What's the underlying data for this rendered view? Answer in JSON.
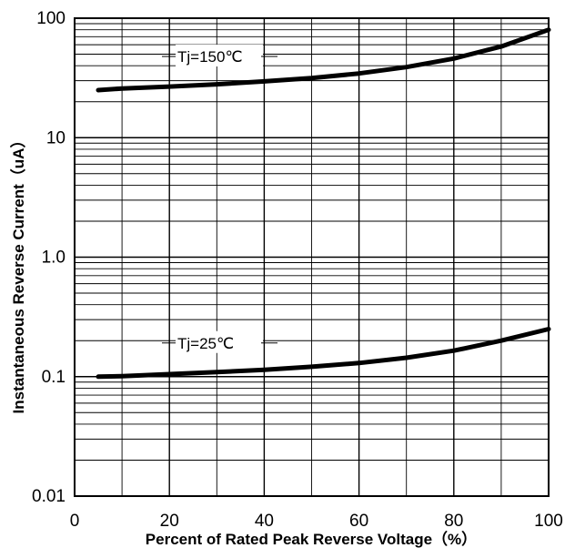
{
  "chart_data": {
    "type": "line",
    "title": "",
    "xlabel": "Percent of Rated Peak Reverse Voltage（%）",
    "ylabel": "Instantaneous Reverse Current（uA）",
    "xlim": [
      0,
      100
    ],
    "ylim": [
      0.01,
      100
    ],
    "yscale": "log",
    "grid": true,
    "x_ticks": [
      "0",
      "20",
      "40",
      "60",
      "80",
      "100"
    ],
    "y_ticks": [
      "0.01",
      "0.1",
      "1.0",
      "10",
      "100"
    ],
    "series": [
      {
        "name": "Tj=150℃",
        "x": [
          5,
          10,
          20,
          30,
          40,
          50,
          60,
          70,
          80,
          90,
          100
        ],
        "y": [
          25,
          25.8,
          26.8,
          28,
          29.6,
          31.5,
          34.5,
          39,
          46,
          58,
          80
        ]
      },
      {
        "name": "Tj=25℃",
        "x": [
          5,
          10,
          20,
          30,
          40,
          50,
          60,
          70,
          80,
          90,
          100
        ],
        "y": [
          0.1,
          0.101,
          0.105,
          0.109,
          0.114,
          0.121,
          0.13,
          0.144,
          0.165,
          0.2,
          0.25
        ]
      }
    ]
  }
}
